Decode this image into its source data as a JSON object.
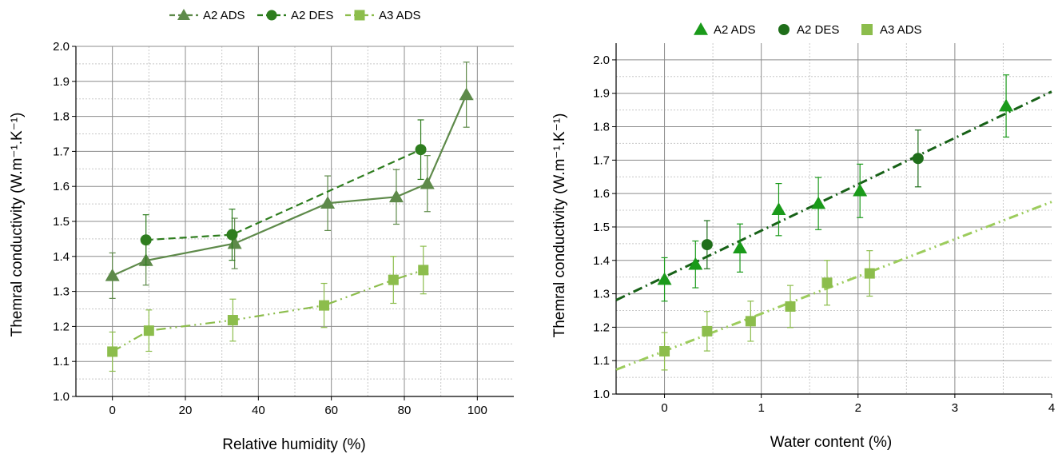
{
  "colors": {
    "a2_ads": "#5e8a4a",
    "a2_des": "#2e7d1e",
    "a3_ads": "#8cbd4c",
    "right_a2_ads": "#1a9a1a",
    "right_a2_des": "#1f6e1a",
    "fit_a2": "#176117",
    "fit_a3": "#9ccc5c",
    "grid_major": "#8c8c8c",
    "grid_minor": "#c8c8c8"
  },
  "chart_data": [
    {
      "type": "line",
      "xlabel": "Relative humidity (%)",
      "ylabel": "Themral conductivity (W.m⁻¹.K⁻¹)",
      "xlim": [
        -10,
        110
      ],
      "ylim": [
        1.0,
        2.0
      ],
      "xticks": [
        "0",
        "20",
        "40",
        "60",
        "80",
        "100"
      ],
      "yticks": [
        "1.0",
        "1.1",
        "1.2",
        "1.3",
        "1.4",
        "1.5",
        "1.6",
        "1.7",
        "1.8",
        "1.9",
        "2.0"
      ],
      "grid": true,
      "legend_position": "top",
      "series": [
        {
          "name": "A2 ADS",
          "marker": "triangle",
          "line": "solid",
          "color": "#5e8a4a",
          "points": [
            {
              "x": 0,
              "y": 1.345,
              "err": 0.065
            },
            {
              "x": 9.2,
              "y": 1.388,
              "err": 0.07
            },
            {
              "x": 33.5,
              "y": 1.437,
              "err": 0.072
            },
            {
              "x": 59,
              "y": 1.552,
              "err": 0.078
            },
            {
              "x": 77.8,
              "y": 1.57,
              "err": 0.078
            },
            {
              "x": 86.3,
              "y": 1.608,
              "err": 0.08
            },
            {
              "x": 97,
              "y": 1.862,
              "err": 0.093
            }
          ]
        },
        {
          "name": "A2 DES",
          "marker": "circle",
          "line": "dashed",
          "color": "#2e7d1e",
          "points": [
            {
              "x": 9.2,
              "y": 1.447,
              "err": 0.072
            },
            {
              "x": 32.8,
              "y": 1.462,
              "err": 0.073
            },
            {
              "x": 84.5,
              "y": 1.705,
              "err": 0.085
            }
          ]
        },
        {
          "name": "A3 ADS",
          "marker": "square",
          "line": "dashdotdot",
          "color": "#8cbd4c",
          "points": [
            {
              "x": 0,
              "y": 1.128,
              "err": 0.056
            },
            {
              "x": 10,
              "y": 1.188,
              "err": 0.059
            },
            {
              "x": 33,
              "y": 1.218,
              "err": 0.06
            },
            {
              "x": 58,
              "y": 1.26,
              "err": 0.063
            },
            {
              "x": 77,
              "y": 1.333,
              "err": 0.067
            },
            {
              "x": 85.2,
              "y": 1.361,
              "err": 0.068
            }
          ]
        }
      ]
    },
    {
      "type": "scatter",
      "xlabel": "Water content (%)",
      "ylabel": "Themral conductivity (W.m⁻¹.K⁻¹)",
      "xlim": [
        -0.5,
        4
      ],
      "ylim": [
        1.0,
        2.05
      ],
      "xticks": [
        "0",
        "1",
        "2",
        "3",
        "4"
      ],
      "yticks": [
        "1.0",
        "1.1",
        "1.2",
        "1.3",
        "1.4",
        "1.5",
        "1.6",
        "1.7",
        "1.8",
        "1.9",
        "2.0"
      ],
      "grid": true,
      "legend_position": "top",
      "series": [
        {
          "name": "A2 ADS",
          "marker": "triangle",
          "color": "#1a9a1a",
          "points": [
            {
              "x": 0,
              "y": 1.343,
              "err": 0.065
            },
            {
              "x": 0.32,
              "y": 1.388,
              "err": 0.07
            },
            {
              "x": 0.78,
              "y": 1.437,
              "err": 0.072
            },
            {
              "x": 1.18,
              "y": 1.552,
              "err": 0.078
            },
            {
              "x": 1.59,
              "y": 1.57,
              "err": 0.078
            },
            {
              "x": 2.02,
              "y": 1.608,
              "err": 0.08
            },
            {
              "x": 3.53,
              "y": 1.862,
              "err": 0.093
            }
          ]
        },
        {
          "name": "A2 DES",
          "marker": "circle",
          "color": "#1f6e1a",
          "points": [
            {
              "x": 0.44,
              "y": 1.447,
              "err": 0.072
            },
            {
              "x": 2.62,
              "y": 1.705,
              "err": 0.085
            }
          ]
        },
        {
          "name": "A3 ADS",
          "marker": "square",
          "color": "#8cbd4c",
          "points": [
            {
              "x": 0,
              "y": 1.128,
              "err": 0.056
            },
            {
              "x": 0.44,
              "y": 1.188,
              "err": 0.059
            },
            {
              "x": 0.89,
              "y": 1.218,
              "err": 0.06
            },
            {
              "x": 1.3,
              "y": 1.262,
              "err": 0.063
            },
            {
              "x": 1.68,
              "y": 1.333,
              "err": 0.067
            },
            {
              "x": 2.12,
              "y": 1.361,
              "err": 0.068
            }
          ]
        }
      ],
      "fits": [
        {
          "x": [
            -0.5,
            4
          ],
          "y": [
            1.281,
            1.905
          ],
          "color": "#176117",
          "style": "dashdot"
        },
        {
          "x": [
            -0.5,
            4
          ],
          "y": [
            1.073,
            1.575
          ],
          "color": "#9ccc5c",
          "style": "dashdotdot"
        }
      ]
    }
  ]
}
